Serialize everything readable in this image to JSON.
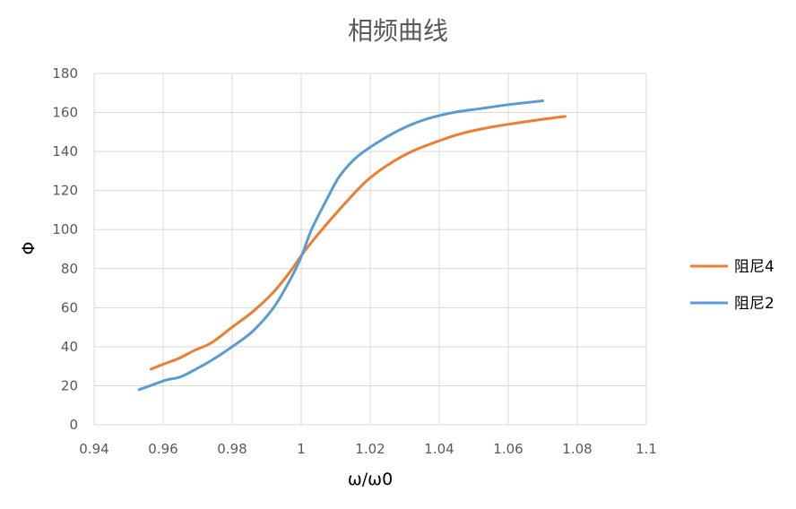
{
  "chart_data": {
    "type": "line",
    "title": "相频曲线",
    "xlabel": "ω/ω0",
    "ylabel": "Φ",
    "xlim": [
      0.94,
      1.1
    ],
    "ylim": [
      0,
      180
    ],
    "x_ticks": [
      "0.94",
      "0.96",
      "0.98",
      "1",
      "1.02",
      "1.04",
      "1.06",
      "1.08",
      "1.1"
    ],
    "y_ticks": [
      "0",
      "20",
      "40",
      "60",
      "80",
      "100",
      "120",
      "140",
      "160",
      "180"
    ],
    "grid": true,
    "legend_position": "right",
    "series": [
      {
        "name": "阻尼4",
        "color": "#ED7D31",
        "x": [
          0.9565,
          0.96,
          0.9645,
          0.969,
          0.974,
          0.98,
          0.986,
          0.992,
          0.997,
          1.001,
          1.007,
          1.013,
          1.019,
          1.025,
          1.032,
          1.04,
          1.047,
          1.055,
          1.062,
          1.069,
          1.0765
        ],
        "y": [
          28.5,
          31,
          34,
          38,
          42,
          50,
          58,
          68,
          79,
          89,
          102,
          114,
          125,
          133,
          140,
          145.5,
          149.5,
          152.5,
          154.5,
          156.3,
          158
        ]
      },
      {
        "name": "阻尼2",
        "color": "#5B9BD5",
        "x": [
          0.953,
          0.957,
          0.961,
          0.965,
          0.969,
          0.974,
          0.98,
          0.986,
          0.992,
          0.997,
          1.0,
          1.003,
          1.007,
          1.011,
          1.016,
          1.022,
          1.029,
          1.036,
          1.044,
          1.052,
          1.06,
          1.07
        ],
        "y": [
          18,
          20.5,
          23,
          24.5,
          28,
          33,
          40,
          48,
          60,
          75,
          86,
          100,
          114,
          127,
          137,
          144.5,
          151.5,
          156.5,
          160,
          162,
          164,
          166
        ]
      }
    ]
  }
}
